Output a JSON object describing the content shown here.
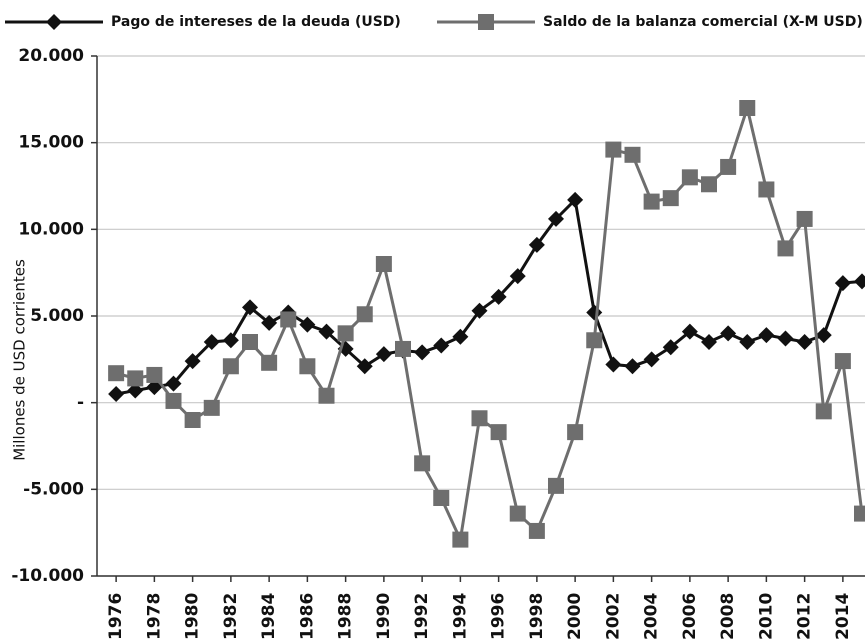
{
  "chart_data": {
    "type": "line",
    "y_axis_label": "Millones de USD corrientes",
    "x": [
      1976,
      1977,
      1978,
      1979,
      1980,
      1981,
      1982,
      1983,
      1984,
      1985,
      1986,
      1987,
      1988,
      1989,
      1990,
      1991,
      1992,
      1993,
      1994,
      1995,
      1996,
      1997,
      1998,
      1999,
      2000,
      2001,
      2002,
      2003,
      2004,
      2005,
      2006,
      2007,
      2008,
      2009,
      2010,
      2011,
      2012,
      2013,
      2014,
      2015
    ],
    "xlim": [
      1975,
      2015
    ],
    "xticks": [
      1976,
      1978,
      1980,
      1982,
      1984,
      1986,
      1988,
      1990,
      1992,
      1994,
      1996,
      1998,
      2000,
      2002,
      2004,
      2006,
      2008,
      2010,
      2012,
      2014
    ],
    "ylim": [
      -10000,
      20000
    ],
    "yticks": [
      {
        "value": -10000,
        "label": "-10.000"
      },
      {
        "value": -5000,
        "label": "-5.000"
      },
      {
        "value": 0,
        "label": "-"
      },
      {
        "value": 5000,
        "label": "5.000"
      },
      {
        "value": 10000,
        "label": "10.000"
      },
      {
        "value": 15000,
        "label": "15.000"
      },
      {
        "value": 20000,
        "label": "20.000"
      }
    ],
    "grid": true,
    "legend": "top",
    "series": [
      {
        "name": "Pago de intereses de la deuda (USD)",
        "color": "#111111",
        "marker": "diamond",
        "values": [
          500,
          700,
          900,
          1100,
          2400,
          3500,
          3600,
          5500,
          4600,
          5200,
          4500,
          4100,
          3100,
          2100,
          2800,
          3000,
          2900,
          3300,
          3800,
          5300,
          6100,
          7300,
          9100,
          10600,
          11700,
          5200,
          2200,
          2100,
          2500,
          3200,
          4100,
          3500,
          4000,
          3500,
          3900,
          3700,
          3500,
          3900,
          6900,
          7000
        ]
      },
      {
        "name": "Saldo de la balanza comercial (X-M USD)",
        "color": "#6e6e6e",
        "marker": "square",
        "values": [
          1700,
          1400,
          1600,
          100,
          -1000,
          -300,
          2100,
          3500,
          2300,
          4800,
          2100,
          400,
          4000,
          5100,
          8000,
          3100,
          -3500,
          -5500,
          -7900,
          -900,
          -1700,
          -6400,
          -7400,
          -4800,
          -1700,
          3600,
          14600,
          14300,
          11600,
          11800,
          13000,
          12600,
          13600,
          17000,
          12300,
          8900,
          10600,
          -500,
          2400,
          -6400
        ]
      }
    ]
  }
}
